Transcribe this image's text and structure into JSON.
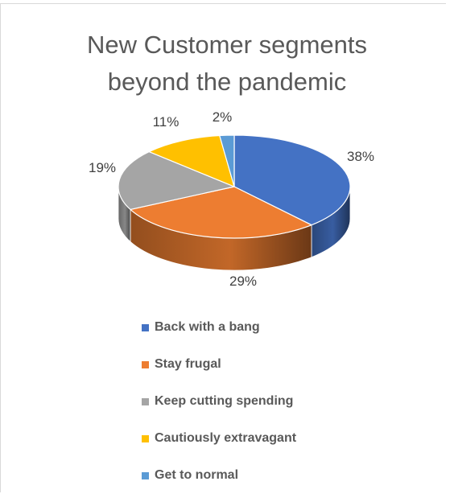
{
  "chart_data": {
    "type": "pie",
    "title": "New Customer segments beyond the pandemic",
    "title_lines": [
      "New Customer segments",
      "beyond the pandemic"
    ],
    "style": "3d",
    "legend_position": "bottom",
    "slices": [
      {
        "label": "Back with a bang",
        "value": 38,
        "value_label": "38%",
        "color": "#4472C4"
      },
      {
        "label": "Stay frugal",
        "value": 29,
        "value_label": "29%",
        "color": "#ED7D31"
      },
      {
        "label": "Keep cutting spending",
        "value": 19,
        "value_label": "19%",
        "color": "#A5A5A5"
      },
      {
        "label": "Cautiously extravagant",
        "value": 11,
        "value_label": "11%",
        "color": "#FFC000"
      },
      {
        "label": "Get to normal",
        "value": 2,
        "value_label": "2%",
        "color": "#5B9BD5"
      }
    ]
  }
}
